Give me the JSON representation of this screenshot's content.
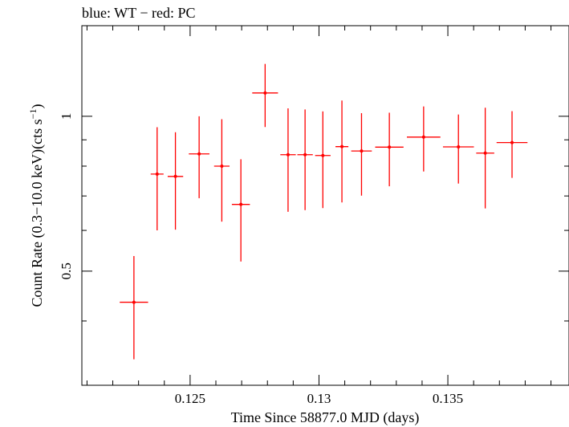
{
  "chart_data": {
    "type": "scatter",
    "title": "blue: WT − red: PC",
    "xlabel": "Time Since 58877.0 MJD (days)",
    "ylabel_main": "Count Rate (0.3−10.0 keV)(cts s",
    "ylabel_sup": "−1",
    "ylabel_end": ")",
    "xlim": [
      0.1208,
      0.1397
    ],
    "ylim": [
      0.3,
      1.5
    ],
    "yscale": "log",
    "grid": false,
    "x_ticks": [
      {
        "value": 0.125,
        "label": "0.125"
      },
      {
        "value": 0.13,
        "label": "0.13"
      },
      {
        "value": 0.135,
        "label": "0.135"
      }
    ],
    "y_ticks": [
      {
        "value": 0.5,
        "label": "0.5"
      },
      {
        "value": 1,
        "label": "1"
      }
    ],
    "series": [
      {
        "color": "#ff0000",
        "points": [
          {
            "x": 0.12282,
            "xerr": 0.00055,
            "y": 0.435,
            "ylo": 0.337,
            "yhi": 0.535
          },
          {
            "x": 0.12372,
            "xerr": 0.00025,
            "y": 0.772,
            "ylo": 0.6,
            "yhi": 0.952
          },
          {
            "x": 0.12443,
            "xerr": 0.0003,
            "y": 0.764,
            "ylo": 0.602,
            "yhi": 0.931
          },
          {
            "x": 0.12535,
            "xerr": 0.0004,
            "y": 0.845,
            "ylo": 0.693,
            "yhi": 1.0
          },
          {
            "x": 0.12623,
            "xerr": 0.0003,
            "y": 0.8,
            "ylo": 0.624,
            "yhi": 0.987
          },
          {
            "x": 0.12697,
            "xerr": 0.00035,
            "y": 0.674,
            "ylo": 0.522,
            "yhi": 0.825
          },
          {
            "x": 0.12791,
            "xerr": 0.0005,
            "y": 1.11,
            "ylo": 0.953,
            "yhi": 1.264
          },
          {
            "x": 0.1288,
            "xerr": 0.0003,
            "y": 0.842,
            "ylo": 0.652,
            "yhi": 1.036
          },
          {
            "x": 0.12946,
            "xerr": 0.0003,
            "y": 0.842,
            "ylo": 0.657,
            "yhi": 1.031
          },
          {
            "x": 0.13015,
            "xerr": 0.0003,
            "y": 0.839,
            "ylo": 0.663,
            "yhi": 1.022
          },
          {
            "x": 0.13089,
            "xerr": 0.00025,
            "y": 0.873,
            "ylo": 0.68,
            "yhi": 1.073
          },
          {
            "x": 0.13165,
            "xerr": 0.0004,
            "y": 0.856,
            "ylo": 0.701,
            "yhi": 1.014
          },
          {
            "x": 0.13273,
            "xerr": 0.00055,
            "y": 0.871,
            "ylo": 0.731,
            "yhi": 1.016
          },
          {
            "x": 0.13406,
            "xerr": 0.00065,
            "y": 0.911,
            "ylo": 0.781,
            "yhi": 1.045
          },
          {
            "x": 0.13541,
            "xerr": 0.0006,
            "y": 0.872,
            "ylo": 0.74,
            "yhi": 1.008
          },
          {
            "x": 0.13645,
            "xerr": 0.00035,
            "y": 0.848,
            "ylo": 0.662,
            "yhi": 1.039
          },
          {
            "x": 0.13749,
            "xerr": 0.0006,
            "y": 0.889,
            "ylo": 0.759,
            "yhi": 1.023
          }
        ]
      }
    ]
  }
}
